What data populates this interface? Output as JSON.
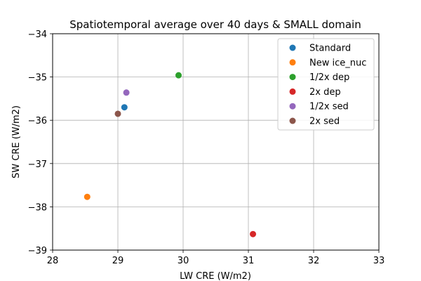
{
  "chart_data": {
    "type": "scatter",
    "title": "Spatiotemporal average over 40 days & SMALL domain",
    "xlabel": "LW CRE (W/m2)",
    "ylabel": "SW CRE (W/m2)",
    "xlim": [
      28,
      33
    ],
    "ylim": [
      -39,
      -34
    ],
    "xticks": [
      28,
      29,
      30,
      31,
      32,
      33
    ],
    "yticks": [
      -39,
      -38,
      -37,
      -36,
      -35,
      -34
    ],
    "xtick_labels": [
      "28",
      "29",
      "30",
      "31",
      "32",
      "33"
    ],
    "ytick_labels": [
      "−39",
      "−38",
      "−37",
      "−36",
      "−35",
      "−34"
    ],
    "grid": true,
    "legend_position": "top-right",
    "series": [
      {
        "name": "Standard",
        "color": "#1f77b4",
        "x": 29.1,
        "y": -35.7
      },
      {
        "name": "New ice_nuc",
        "color": "#ff7f0e",
        "x": 28.53,
        "y": -37.77
      },
      {
        "name": "1/2x dep",
        "color": "#2ca02c",
        "x": 29.93,
        "y": -34.96
      },
      {
        "name": "2x dep",
        "color": "#d62728",
        "x": 31.07,
        "y": -38.63
      },
      {
        "name": "1/2x sed",
        "color": "#9467bd",
        "x": 29.13,
        "y": -35.36
      },
      {
        "name": "2x sed",
        "color": "#8c564b",
        "x": 29.0,
        "y": -35.85
      }
    ]
  }
}
